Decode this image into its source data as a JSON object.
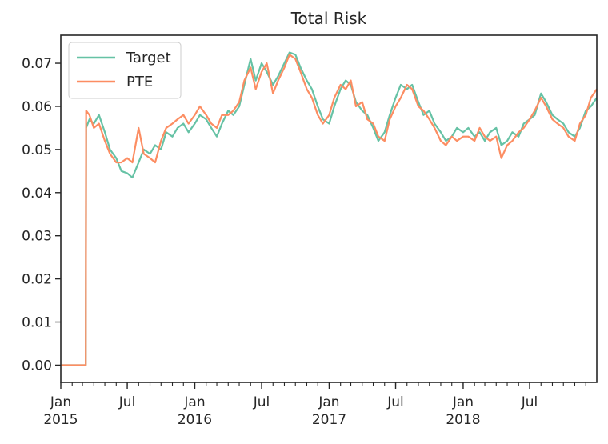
{
  "chart_data": {
    "type": "line",
    "title": "Total Risk",
    "xlabel": "",
    "ylabel": "",
    "x_range": [
      "2015-01-01",
      "2018-12-31"
    ],
    "ylim": [
      -0.004,
      0.0765
    ],
    "yticks": [
      0.0,
      0.01,
      0.02,
      0.03,
      0.04,
      0.05,
      0.06,
      0.07
    ],
    "ytick_labels": [
      "0.00",
      "0.01",
      "0.02",
      "0.03",
      "0.04",
      "0.05",
      "0.06",
      "0.07"
    ],
    "xticks": [
      {
        "date": "2015-01-01",
        "label": "Jan\n2015"
      },
      {
        "date": "2015-07-01",
        "label": "Jul"
      },
      {
        "date": "2016-01-01",
        "label": "Jan\n2016"
      },
      {
        "date": "2016-07-01",
        "label": "Jul"
      },
      {
        "date": "2017-01-01",
        "label": "Jan\n2017"
      },
      {
        "date": "2017-07-01",
        "label": "Jul"
      },
      {
        "date": "2018-01-01",
        "label": "Jan\n2018"
      },
      {
        "date": "2018-07-01",
        "label": "Jul"
      }
    ],
    "grid": false,
    "legend_position": "top-left",
    "series": [
      {
        "name": "Target",
        "color": "#66c2a5",
        "points": [
          [
            "2015-01-01",
            0.0
          ],
          [
            "2015-03-10",
            0.0
          ],
          [
            "2015-03-11",
            0.055
          ],
          [
            "2015-03-20",
            0.057
          ],
          [
            "2015-04-01",
            0.056
          ],
          [
            "2015-04-15",
            0.058
          ],
          [
            "2015-05-01",
            0.054
          ],
          [
            "2015-05-15",
            0.05
          ],
          [
            "2015-06-01",
            0.048
          ],
          [
            "2015-06-15",
            0.045
          ],
          [
            "2015-07-01",
            0.0445
          ],
          [
            "2015-07-15",
            0.0435
          ],
          [
            "2015-08-01",
            0.047
          ],
          [
            "2015-08-15",
            0.05
          ],
          [
            "2015-09-01",
            0.049
          ],
          [
            "2015-09-15",
            0.051
          ],
          [
            "2015-10-01",
            0.05
          ],
          [
            "2015-10-15",
            0.054
          ],
          [
            "2015-11-01",
            0.053
          ],
          [
            "2015-11-15",
            0.055
          ],
          [
            "2015-12-01",
            0.056
          ],
          [
            "2015-12-15",
            0.054
          ],
          [
            "2016-01-01",
            0.056
          ],
          [
            "2016-01-15",
            0.058
          ],
          [
            "2016-02-01",
            0.057
          ],
          [
            "2016-02-15",
            0.055
          ],
          [
            "2016-03-01",
            0.053
          ],
          [
            "2016-03-15",
            0.056
          ],
          [
            "2016-04-01",
            0.059
          ],
          [
            "2016-04-15",
            0.058
          ],
          [
            "2016-05-01",
            0.06
          ],
          [
            "2016-05-15",
            0.065
          ],
          [
            "2016-06-01",
            0.071
          ],
          [
            "2016-06-15",
            0.066
          ],
          [
            "2016-07-01",
            0.07
          ],
          [
            "2016-07-15",
            0.068
          ],
          [
            "2016-08-01",
            0.065
          ],
          [
            "2016-08-15",
            0.067
          ],
          [
            "2016-09-01",
            0.07
          ],
          [
            "2016-09-15",
            0.0725
          ],
          [
            "2016-10-01",
            0.072
          ],
          [
            "2016-10-15",
            0.069
          ],
          [
            "2016-11-01",
            0.066
          ],
          [
            "2016-11-15",
            0.064
          ],
          [
            "2016-12-01",
            0.06
          ],
          [
            "2016-12-15",
            0.057
          ],
          [
            "2017-01-01",
            0.056
          ],
          [
            "2017-01-15",
            0.06
          ],
          [
            "2017-02-01",
            0.064
          ],
          [
            "2017-02-15",
            0.066
          ],
          [
            "2017-03-01",
            0.065
          ],
          [
            "2017-03-15",
            0.061
          ],
          [
            "2017-04-01",
            0.059
          ],
          [
            "2017-04-15",
            0.058
          ],
          [
            "2017-05-01",
            0.055
          ],
          [
            "2017-05-15",
            0.052
          ],
          [
            "2017-06-01",
            0.054
          ],
          [
            "2017-06-15",
            0.058
          ],
          [
            "2017-07-01",
            0.062
          ],
          [
            "2017-07-15",
            0.065
          ],
          [
            "2017-08-01",
            0.064
          ],
          [
            "2017-08-15",
            0.065
          ],
          [
            "2017-09-01",
            0.061
          ],
          [
            "2017-09-15",
            0.058
          ],
          [
            "2017-10-01",
            0.059
          ],
          [
            "2017-10-15",
            0.056
          ],
          [
            "2017-11-01",
            0.054
          ],
          [
            "2017-11-15",
            0.052
          ],
          [
            "2017-12-01",
            0.053
          ],
          [
            "2017-12-15",
            0.055
          ],
          [
            "2018-01-01",
            0.054
          ],
          [
            "2018-01-15",
            0.055
          ],
          [
            "2018-02-01",
            0.053
          ],
          [
            "2018-02-15",
            0.054
          ],
          [
            "2018-03-01",
            0.052
          ],
          [
            "2018-03-15",
            0.054
          ],
          [
            "2018-04-01",
            0.055
          ],
          [
            "2018-04-15",
            0.051
          ],
          [
            "2018-05-01",
            0.052
          ],
          [
            "2018-05-15",
            0.054
          ],
          [
            "2018-06-01",
            0.053
          ],
          [
            "2018-06-15",
            0.056
          ],
          [
            "2018-07-01",
            0.057
          ],
          [
            "2018-07-15",
            0.058
          ],
          [
            "2018-08-01",
            0.063
          ],
          [
            "2018-08-15",
            0.061
          ],
          [
            "2018-09-01",
            0.058
          ],
          [
            "2018-09-15",
            0.057
          ],
          [
            "2018-10-01",
            0.056
          ],
          [
            "2018-10-15",
            0.054
          ],
          [
            "2018-11-01",
            0.053
          ],
          [
            "2018-11-15",
            0.055
          ],
          [
            "2018-12-01",
            0.059
          ],
          [
            "2018-12-15",
            0.06
          ],
          [
            "2018-12-31",
            0.062
          ]
        ]
      },
      {
        "name": "PTE",
        "color": "#fc8d62",
        "points": [
          [
            "2015-01-01",
            0.0
          ],
          [
            "2015-03-10",
            0.0
          ],
          [
            "2015-03-11",
            0.059
          ],
          [
            "2015-03-20",
            0.058
          ],
          [
            "2015-04-01",
            0.055
          ],
          [
            "2015-04-15",
            0.056
          ],
          [
            "2015-05-01",
            0.052
          ],
          [
            "2015-05-15",
            0.049
          ],
          [
            "2015-06-01",
            0.047
          ],
          [
            "2015-06-15",
            0.047
          ],
          [
            "2015-07-01",
            0.048
          ],
          [
            "2015-07-15",
            0.047
          ],
          [
            "2015-08-01",
            0.055
          ],
          [
            "2015-08-15",
            0.049
          ],
          [
            "2015-09-01",
            0.048
          ],
          [
            "2015-09-15",
            0.047
          ],
          [
            "2015-10-01",
            0.052
          ],
          [
            "2015-10-15",
            0.055
          ],
          [
            "2015-11-01",
            0.056
          ],
          [
            "2015-11-15",
            0.057
          ],
          [
            "2015-12-01",
            0.058
          ],
          [
            "2015-12-15",
            0.056
          ],
          [
            "2016-01-01",
            0.058
          ],
          [
            "2016-01-15",
            0.06
          ],
          [
            "2016-02-01",
            0.058
          ],
          [
            "2016-02-15",
            0.056
          ],
          [
            "2016-03-01",
            0.055
          ],
          [
            "2016-03-15",
            0.058
          ],
          [
            "2016-04-01",
            0.058
          ],
          [
            "2016-04-15",
            0.059
          ],
          [
            "2016-05-01",
            0.061
          ],
          [
            "2016-05-15",
            0.066
          ],
          [
            "2016-06-01",
            0.069
          ],
          [
            "2016-06-15",
            0.064
          ],
          [
            "2016-07-01",
            0.068
          ],
          [
            "2016-07-15",
            0.07
          ],
          [
            "2016-08-01",
            0.063
          ],
          [
            "2016-08-15",
            0.066
          ],
          [
            "2016-09-01",
            0.069
          ],
          [
            "2016-09-15",
            0.072
          ],
          [
            "2016-10-01",
            0.071
          ],
          [
            "2016-10-15",
            0.068
          ],
          [
            "2016-11-01",
            0.064
          ],
          [
            "2016-11-15",
            0.062
          ],
          [
            "2016-12-01",
            0.058
          ],
          [
            "2016-12-15",
            0.056
          ],
          [
            "2017-01-01",
            0.058
          ],
          [
            "2017-01-15",
            0.062
          ],
          [
            "2017-02-01",
            0.065
          ],
          [
            "2017-02-15",
            0.064
          ],
          [
            "2017-03-01",
            0.066
          ],
          [
            "2017-03-15",
            0.06
          ],
          [
            "2017-04-01",
            0.061
          ],
          [
            "2017-04-15",
            0.057
          ],
          [
            "2017-05-01",
            0.056
          ],
          [
            "2017-05-15",
            0.053
          ],
          [
            "2017-06-01",
            0.052
          ],
          [
            "2017-06-15",
            0.057
          ],
          [
            "2017-07-01",
            0.06
          ],
          [
            "2017-07-15",
            0.062
          ],
          [
            "2017-08-01",
            0.065
          ],
          [
            "2017-08-15",
            0.064
          ],
          [
            "2017-09-01",
            0.06
          ],
          [
            "2017-09-15",
            0.059
          ],
          [
            "2017-10-01",
            0.057
          ],
          [
            "2017-10-15",
            0.055
          ],
          [
            "2017-11-01",
            0.052
          ],
          [
            "2017-11-15",
            0.051
          ],
          [
            "2017-12-01",
            0.053
          ],
          [
            "2017-12-15",
            0.052
          ],
          [
            "2018-01-01",
            0.053
          ],
          [
            "2018-01-15",
            0.053
          ],
          [
            "2018-02-01",
            0.052
          ],
          [
            "2018-02-15",
            0.055
          ],
          [
            "2018-03-01",
            0.053
          ],
          [
            "2018-03-15",
            0.052
          ],
          [
            "2018-04-01",
            0.053
          ],
          [
            "2018-04-15",
            0.048
          ],
          [
            "2018-05-01",
            0.051
          ],
          [
            "2018-05-15",
            0.052
          ],
          [
            "2018-06-01",
            0.054
          ],
          [
            "2018-06-15",
            0.055
          ],
          [
            "2018-07-01",
            0.057
          ],
          [
            "2018-07-15",
            0.059
          ],
          [
            "2018-08-01",
            0.062
          ],
          [
            "2018-08-15",
            0.06
          ],
          [
            "2018-09-01",
            0.057
          ],
          [
            "2018-09-15",
            0.056
          ],
          [
            "2018-10-01",
            0.055
          ],
          [
            "2018-10-15",
            0.053
          ],
          [
            "2018-11-01",
            0.052
          ],
          [
            "2018-11-15",
            0.056
          ],
          [
            "2018-12-01",
            0.058
          ],
          [
            "2018-12-15",
            0.062
          ],
          [
            "2018-12-31",
            0.064
          ]
        ]
      }
    ]
  }
}
